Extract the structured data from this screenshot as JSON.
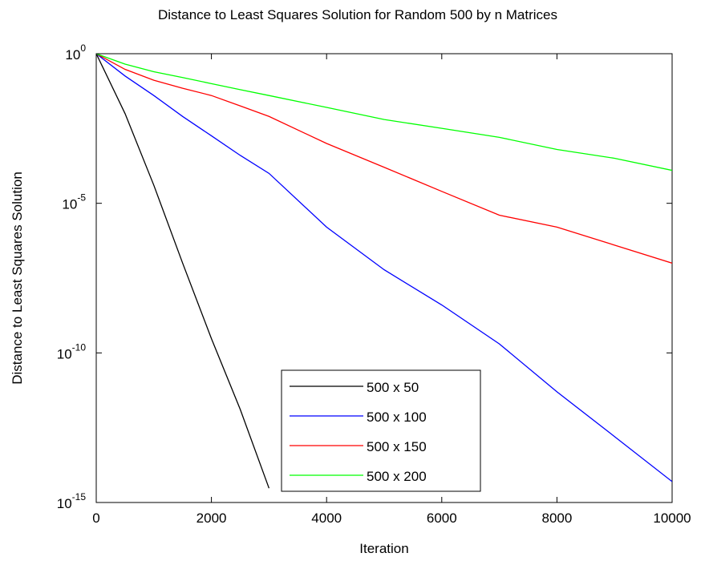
{
  "chart_data": {
    "type": "line",
    "title": "Distance to Least Squares Solution for Random 500 by n Matrices",
    "xlabel": "Iteration",
    "ylabel": "Distance to Least Squares Solution",
    "log_y": true,
    "grid": false,
    "legend_position": "lower center",
    "x": [
      0,
      500,
      1000,
      1500,
      2000,
      2500,
      3000,
      4000,
      5000,
      6000,
      7000,
      8000,
      9000,
      10000
    ],
    "xlim": [
      0,
      10000
    ],
    "xticks": [
      0,
      2000,
      4000,
      6000,
      8000,
      10000
    ],
    "ylim": [
      1e-15,
      1
    ],
    "yticks": [
      {
        "value": 1e-15,
        "label": "10",
        "exponent": "-15"
      },
      {
        "value": 1e-10,
        "label": "10",
        "exponent": "-10"
      },
      {
        "value": 1e-05,
        "label": "10",
        "exponent": "-5"
      },
      {
        "value": 1,
        "label": "10",
        "exponent": "0"
      }
    ],
    "series": [
      {
        "name": "500 x 50",
        "color": "#000000",
        "values": [
          1,
          0.01,
          4e-05,
          1e-07,
          3e-10,
          1.3e-12,
          3e-15,
          null,
          null,
          null,
          null,
          null,
          null,
          null
        ]
      },
      {
        "name": "500 x 100",
        "color": "#0000ff",
        "values": [
          1,
          0.18,
          0.04,
          0.008,
          0.0018,
          0.0004,
          0.0001,
          1.6e-06,
          6e-08,
          4e-09,
          2e-10,
          5e-12,
          1.6e-13,
          5e-15
        ]
      },
      {
        "name": "500 x 150",
        "color": "#ff0000",
        "values": [
          1,
          0.3,
          0.13,
          0.07,
          0.04,
          0.018,
          0.008,
          0.001,
          0.00016,
          2.5e-05,
          4e-06,
          1.6e-06,
          4e-07,
          1e-07
        ]
      },
      {
        "name": "500 x 200",
        "color": "#00ff00",
        "values": [
          1,
          0.45,
          0.25,
          0.16,
          0.1,
          0.063,
          0.04,
          0.016,
          0.0063,
          0.0032,
          0.0016,
          0.00063,
          0.00032,
          0.000126
        ]
      }
    ]
  }
}
